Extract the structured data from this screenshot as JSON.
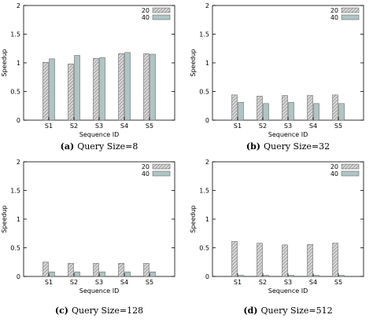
{
  "chart_data": [
    {
      "type": "bar",
      "caption_letter": "(a)",
      "caption_text": "Query Size=8",
      "categories": [
        "S1",
        "S2",
        "S3",
        "S4",
        "S5"
      ],
      "xlabel": "Sequence ID",
      "ylabel": "Speedup",
      "ylim": [
        0,
        2
      ],
      "yticks": [
        "0",
        "0.5",
        "1",
        "1.5",
        "2"
      ],
      "legend_position": "top-right",
      "series": [
        {
          "name": "20",
          "values": [
            1.01,
            0.98,
            1.08,
            1.16,
            1.16
          ]
        },
        {
          "name": "40",
          "values": [
            1.07,
            1.13,
            1.09,
            1.18,
            1.15
          ]
        }
      ]
    },
    {
      "type": "bar",
      "caption_letter": "(b)",
      "caption_text": "Query Size=32",
      "categories": [
        "S1",
        "S2",
        "S3",
        "S4",
        "S5"
      ],
      "xlabel": "Sequence ID",
      "ylabel": "Speedup",
      "ylim": [
        0,
        2
      ],
      "yticks": [
        "0",
        "0.5",
        "1",
        "1.5",
        "2"
      ],
      "legend_position": "top-right",
      "series": [
        {
          "name": "20",
          "values": [
            0.44,
            0.42,
            0.43,
            0.43,
            0.44
          ]
        },
        {
          "name": "40",
          "values": [
            0.31,
            0.29,
            0.31,
            0.29,
            0.29
          ]
        }
      ]
    },
    {
      "type": "bar",
      "caption_letter": "(c)",
      "caption_text": "Query Size=128",
      "categories": [
        "S1",
        "S2",
        "S3",
        "S4",
        "S5"
      ],
      "xlabel": "Sequence ID",
      "ylabel": "Speedup",
      "ylim": [
        0,
        2
      ],
      "yticks": [
        "0",
        "0.5",
        "1",
        "1.5",
        "2"
      ],
      "legend_position": "top-right",
      "series": [
        {
          "name": "20",
          "values": [
            0.25,
            0.23,
            0.23,
            0.23,
            0.23
          ]
        },
        {
          "name": "40",
          "values": [
            0.08,
            0.08,
            0.08,
            0.08,
            0.08
          ]
        }
      ]
    },
    {
      "type": "bar",
      "caption_letter": "(d)",
      "caption_text": "Query Size=512",
      "categories": [
        "S1",
        "S2",
        "S3",
        "S4",
        "S5"
      ],
      "xlabel": "Sequence ID",
      "ylabel": "Speedup",
      "ylim": [
        0,
        2
      ],
      "yticks": [
        "0",
        "0.5",
        "1",
        "1.5",
        "2"
      ],
      "legend_position": "top-right",
      "series": [
        {
          "name": "20",
          "values": [
            0.61,
            0.58,
            0.55,
            0.56,
            0.58
          ]
        },
        {
          "name": "40",
          "values": [
            0.02,
            0.02,
            0.02,
            0.02,
            0.02
          ]
        }
      ]
    }
  ],
  "colors": {
    "series_20_fill": "#d8d8d8",
    "series_20_hatch": "#7a7a7a",
    "series_40_fill": "#b0c4c4",
    "axis": "#000000"
  }
}
